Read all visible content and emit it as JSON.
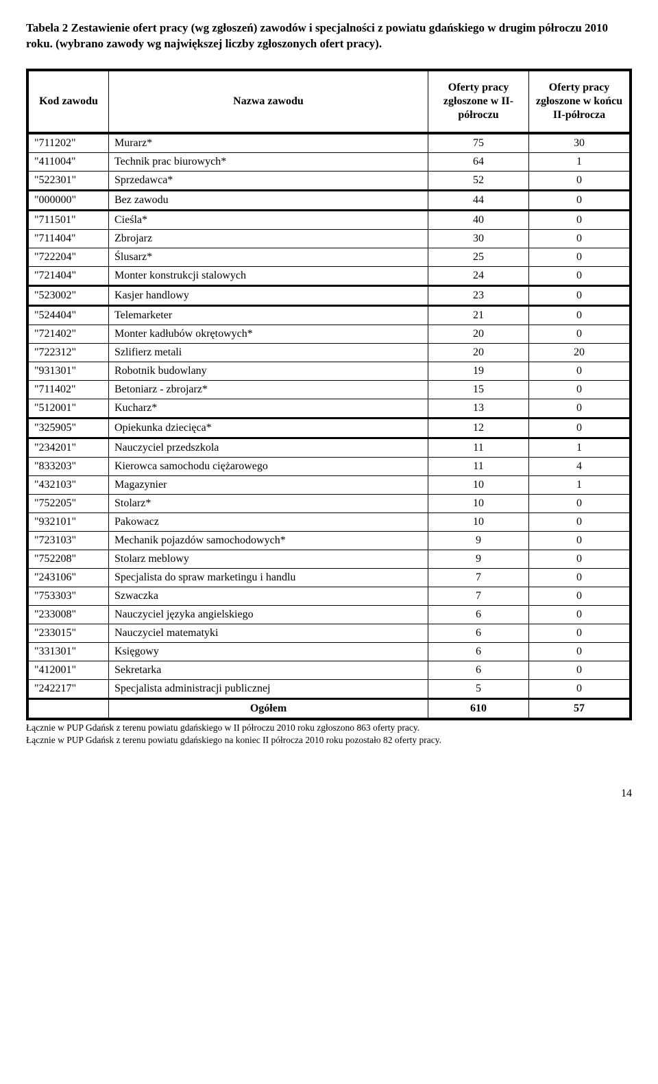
{
  "title": "Tabela 2  Zestawienie ofert pracy (wg zgłoszeń) zawodów i specjalności z powiatu gdańskiego w drugim półroczu 2010 roku. (wybrano zawody wg największej liczby zgłoszonych ofert pracy).",
  "columns": [
    "Kod zawodu",
    "Nazwa zawodu",
    "Oferty pracy zgłoszone w II-półroczu",
    "Oferty pracy zgłoszone w końcu II-półrocza"
  ],
  "groups": [
    [
      {
        "code": "\"711202\"",
        "name": "Murarz*",
        "v1": "75",
        "v2": "30"
      },
      {
        "code": "\"411004\"",
        "name": "Technik prac biurowych*",
        "v1": "64",
        "v2": "1"
      },
      {
        "code": "\"522301\"",
        "name": "Sprzedawca*",
        "v1": "52",
        "v2": "0"
      }
    ],
    [
      {
        "code": "\"000000\"",
        "name": "Bez zawodu",
        "v1": "44",
        "v2": "0"
      }
    ],
    [
      {
        "code": "\"711501\"",
        "name": "Cieśla*",
        "v1": "40",
        "v2": "0"
      },
      {
        "code": "\"711404\"",
        "name": "Zbrojarz",
        "v1": "30",
        "v2": "0"
      },
      {
        "code": "\"722204\"",
        "name": "Ślusarz*",
        "v1": "25",
        "v2": "0"
      },
      {
        "code": "\"721404\"",
        "name": "Monter konstrukcji stalowych",
        "v1": "24",
        "v2": "0"
      }
    ],
    [
      {
        "code": "\"523002\"",
        "name": "Kasjer handlowy",
        "v1": "23",
        "v2": "0"
      }
    ],
    [
      {
        "code": "\"524404\"",
        "name": "Telemarketer",
        "v1": "21",
        "v2": "0"
      },
      {
        "code": "\"721402\"",
        "name": "Monter kadłubów okrętowych*",
        "v1": "20",
        "v2": "0"
      },
      {
        "code": "\"722312\"",
        "name": "Szlifierz metali",
        "v1": "20",
        "v2": "20"
      },
      {
        "code": "\"931301\"",
        "name": "Robotnik budowlany",
        "v1": "19",
        "v2": "0"
      },
      {
        "code": "\"711402\"",
        "name": "Betoniarz - zbrojarz*",
        "v1": "15",
        "v2": "0"
      },
      {
        "code": "\"512001\"",
        "name": "Kucharz*",
        "v1": "13",
        "v2": "0"
      }
    ],
    [
      {
        "code": "\"325905\"",
        "name": "Opiekunka dziecięca*",
        "v1": "12",
        "v2": "0"
      }
    ],
    [
      {
        "code": "\"234201\"",
        "name": "Nauczyciel przedszkola",
        "v1": "11",
        "v2": "1"
      },
      {
        "code": "\"833203\"",
        "name": "Kierowca samochodu ciężarowego",
        "v1": "11",
        "v2": "4"
      },
      {
        "code": "\"432103\"",
        "name": "Magazynier",
        "v1": "10",
        "v2": "1"
      },
      {
        "code": "\"752205\"",
        "name": "Stolarz*",
        "v1": "10",
        "v2": "0"
      },
      {
        "code": "\"932101\"",
        "name": "Pakowacz",
        "v1": "10",
        "v2": "0"
      },
      {
        "code": "\"723103\"",
        "name": "Mechanik pojazdów samochodowych*",
        "v1": "9",
        "v2": "0"
      },
      {
        "code": "\"752208\"",
        "name": "Stolarz meblowy",
        "v1": "9",
        "v2": "0"
      },
      {
        "code": "\"243106\"",
        "name": "Specjalista do spraw marketingu i handlu",
        "v1": "7",
        "v2": "0"
      },
      {
        "code": "\"753303\"",
        "name": "Szwaczka",
        "v1": "7",
        "v2": "0"
      },
      {
        "code": "\"233008\"",
        "name": "Nauczyciel języka angielskiego",
        "v1": "6",
        "v2": "0"
      },
      {
        "code": "\"233015\"",
        "name": "Nauczyciel matematyki",
        "v1": "6",
        "v2": "0"
      },
      {
        "code": "\"331301\"",
        "name": "Księgowy",
        "v1": "6",
        "v2": "0"
      },
      {
        "code": "\"412001\"",
        "name": "Sekretarka",
        "v1": "6",
        "v2": "0"
      },
      {
        "code": "\"242217\"",
        "name": "Specjalista administracji publicznej",
        "v1": "5",
        "v2": "0"
      }
    ]
  ],
  "total": {
    "label": "Ogółem",
    "v1": "610",
    "v2": "57"
  },
  "footnotes": [
    "Łącznie w PUP Gdańsk z terenu powiatu gdańskiego w II półroczu 2010 roku zgłoszono 863 oferty pracy.",
    "Łącznie w PUP Gdańsk z terenu powiatu gdańskiego na koniec II półrocza 2010 roku pozostało 82 oferty pracy."
  ],
  "page_number": "14"
}
